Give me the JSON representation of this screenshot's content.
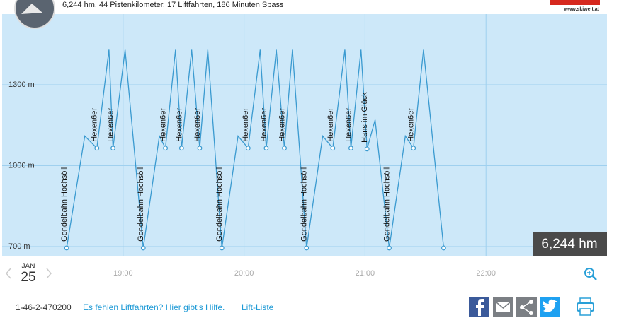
{
  "header": {
    "summary": "6,244 hm, 44 Pistenkilometer, 17 Liftfahrten, 186 Minuten Spass",
    "logo_url": "www.skiwelt.at"
  },
  "chart_data": {
    "type": "line",
    "color": "#3a9ad0",
    "x": [
      "18:32",
      "18:41",
      "18:47",
      "18:53",
      "18:55",
      "19:01",
      "19:10",
      "19:18",
      "19:21",
      "19:26",
      "19:29",
      "19:34",
      "19:38",
      "19:42",
      "19:49",
      "19:57",
      "20:02",
      "20:08",
      "20:11",
      "20:16",
      "20:20",
      "20:24",
      "20:31",
      "20:39",
      "20:44",
      "20:50",
      "20:53",
      "20:58",
      "21:01",
      "21:05",
      "21:12",
      "21:20",
      "21:24",
      "21:29",
      "21:39"
    ],
    "values": [
      695,
      1110,
      1065,
      1430,
      1065,
      1430,
      695,
      1110,
      1065,
      1430,
      1065,
      1430,
      1065,
      1430,
      695,
      1110,
      1065,
      1430,
      1065,
      1430,
      1065,
      1430,
      695,
      1110,
      1065,
      1430,
      1065,
      1430,
      1062,
      1170,
      695,
      1110,
      1065,
      1430,
      695
    ],
    "markers": [
      {
        "x": "18:32",
        "value": 695,
        "label": "Gondelbahn Hochsöll"
      },
      {
        "x": "18:47",
        "value": 1065,
        "label": "Hexen6er"
      },
      {
        "x": "18:55",
        "value": 1065,
        "label": "Hexen6er"
      },
      {
        "x": "19:10",
        "value": 695,
        "label": "Gondelbahn Hochsöll"
      },
      {
        "x": "19:21",
        "value": 1065,
        "label": "Hexen6er"
      },
      {
        "x": "19:29",
        "value": 1065,
        "label": "Hexen6er"
      },
      {
        "x": "19:38",
        "value": 1065,
        "label": "Hexen6er"
      },
      {
        "x": "19:49",
        "value": 695,
        "label": "Gondelbahn Hochsöll"
      },
      {
        "x": "20:02",
        "value": 1065,
        "label": "Hexen6er"
      },
      {
        "x": "20:11",
        "value": 1065,
        "label": "Hexen6er"
      },
      {
        "x": "20:20",
        "value": 1065,
        "label": "Hexen6er"
      },
      {
        "x": "20:31",
        "value": 695,
        "label": "Gondelbahn Hochsöll"
      },
      {
        "x": "20:44",
        "value": 1065,
        "label": "Hexen6er"
      },
      {
        "x": "20:53",
        "value": 1065,
        "label": "Hexen6er"
      },
      {
        "x": "21:01",
        "value": 1062,
        "label": "Hans im Glück"
      },
      {
        "x": "21:12",
        "value": 695,
        "label": "Gondelbahn Hochsöll"
      },
      {
        "x": "21:24",
        "value": 1065,
        "label": "Hexen6er"
      },
      {
        "x": "21:39",
        "value": 695,
        "label": null
      }
    ],
    "xlim": [
      "18:00",
      "23:00"
    ],
    "xticks": [
      "19:00",
      "20:00",
      "21:00",
      "22:00"
    ],
    "ylim": [
      666,
      1562
    ],
    "yticks": [
      {
        "value": 700,
        "label": "700 m"
      },
      {
        "value": 1000,
        "label": "1000 m"
      },
      {
        "value": 1300,
        "label": "1300 m"
      }
    ],
    "grid": true,
    "total": "6,244 hm"
  },
  "date": {
    "month": "JAN",
    "day": "25"
  },
  "footer": {
    "id": "1-46-2-470200",
    "help_link": "Es fehlen Liftfahrten? Hier gibt's Hilfe.",
    "list_link": "Lift-Liste"
  }
}
